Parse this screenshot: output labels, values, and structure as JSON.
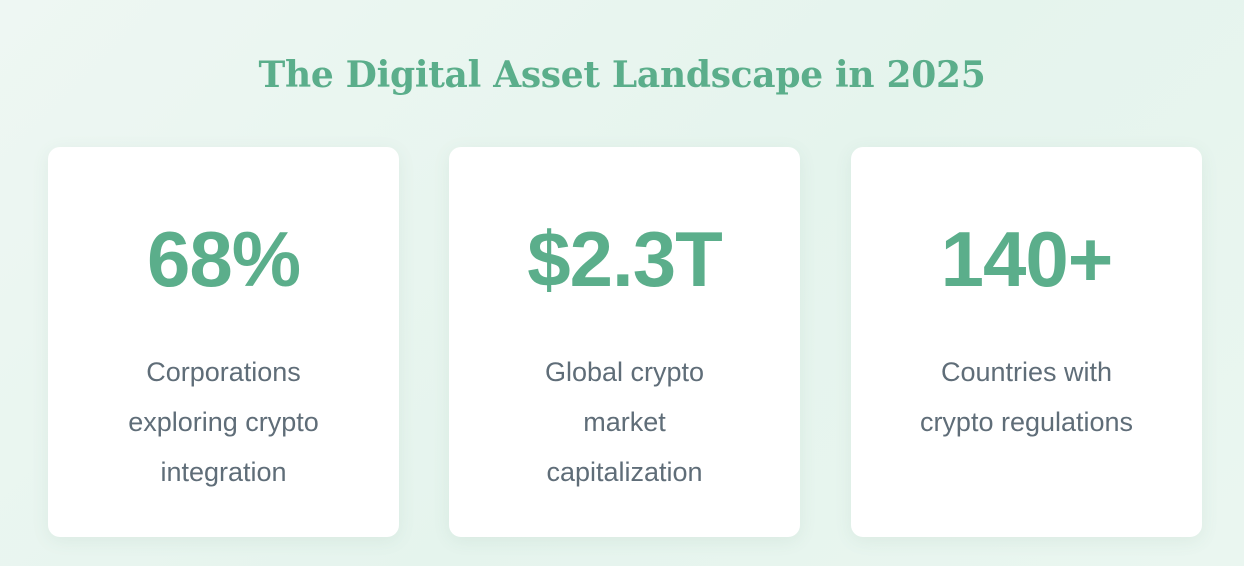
{
  "header": {
    "title": "The Digital Asset Landscape in 2025"
  },
  "stats": [
    {
      "value": "68%",
      "label": "Corporations exploring crypto integration"
    },
    {
      "value": "$2.3T",
      "label": "Global crypto market capitalization"
    },
    {
      "value": "140+",
      "label": "Countries with crypto regulations"
    }
  ],
  "colors": {
    "accent": "#5bae8b",
    "label_text": "#5f6d78",
    "card_bg": "#ffffff",
    "page_bg": "#e9f5ef"
  }
}
